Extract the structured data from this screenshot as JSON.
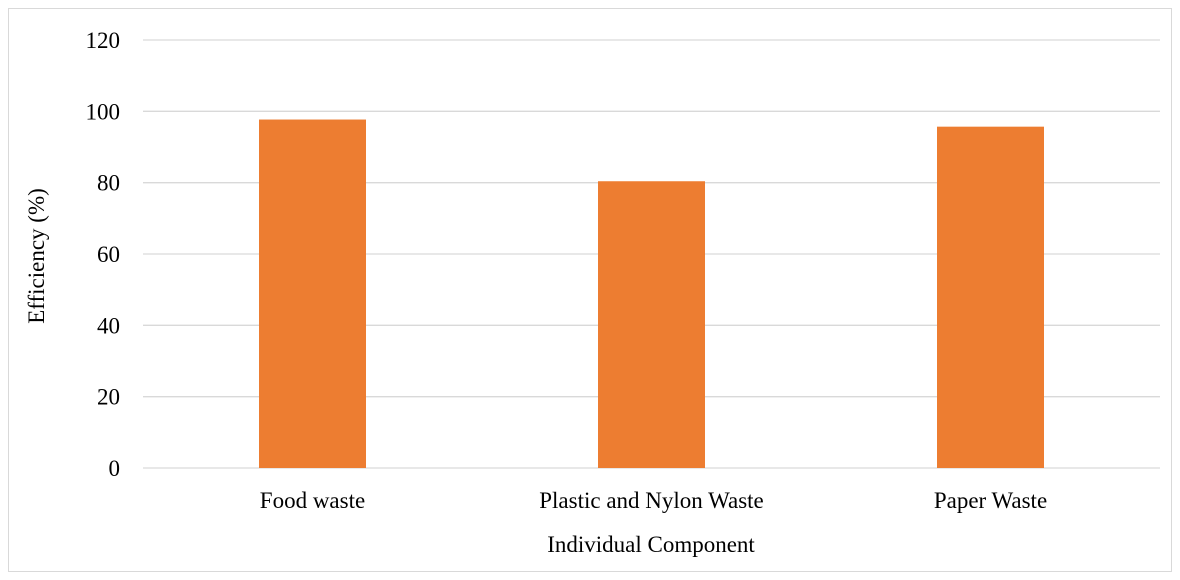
{
  "chart_data": {
    "type": "bar",
    "categories": [
      "Food waste",
      "Plastic and Nylon Waste",
      "Paper Waste"
    ],
    "values": [
      97.7,
      80.4,
      95.7
    ],
    "xlabel": "Individual Component",
    "ylabel": "Efficiency (%)",
    "ylim": [
      0,
      120
    ],
    "yticks": [
      0,
      20,
      40,
      60,
      80,
      100,
      120
    ],
    "grid": true,
    "legend": "none",
    "colors": {
      "bar": "#ED7D31",
      "grid": "#d9d9d9",
      "axis": "#d9d9d9"
    }
  }
}
